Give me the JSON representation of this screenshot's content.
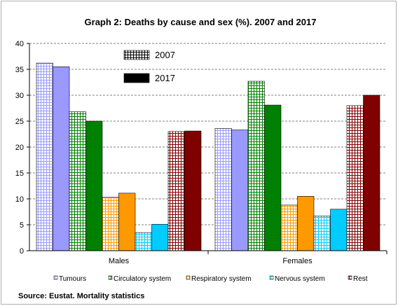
{
  "chart_data": {
    "type": "bar",
    "title": "Graph 2: Deaths by cause and sex (%). 2007 and 2017",
    "categories": [
      "Males",
      "Females"
    ],
    "ylim": [
      0,
      40
    ],
    "yticks": [
      "0",
      "5",
      "10",
      "15",
      "20",
      "25",
      "30",
      "35",
      "40"
    ],
    "grid": true,
    "year_legend": [
      "2007",
      "2017"
    ],
    "series": [
      {
        "name": "Tumours",
        "color": "#9999ff",
        "values": {
          "2007": [
            36.2,
            23.6
          ],
          "2017": [
            35.5,
            23.3
          ]
        }
      },
      {
        "name": "Circulatory system",
        "color": "#008000",
        "values": {
          "2007": [
            26.8,
            32.7
          ],
          "2017": [
            25.0,
            28.1
          ]
        }
      },
      {
        "name": "Respiratory system",
        "color": "#ff9900",
        "values": {
          "2007": [
            10.3,
            8.8
          ],
          "2017": [
            11.1,
            10.5
          ]
        }
      },
      {
        "name": "Nervous system",
        "color": "#00ccff",
        "values": {
          "2007": [
            3.5,
            6.7
          ],
          "2017": [
            5.1,
            8.0
          ]
        }
      },
      {
        "name": "Rest",
        "color": "#800000",
        "values": {
          "2007": [
            23.0,
            28.0
          ],
          "2017": [
            23.1,
            30.0
          ]
        }
      }
    ],
    "source": "Source: Eustat. Mortality statistics"
  }
}
